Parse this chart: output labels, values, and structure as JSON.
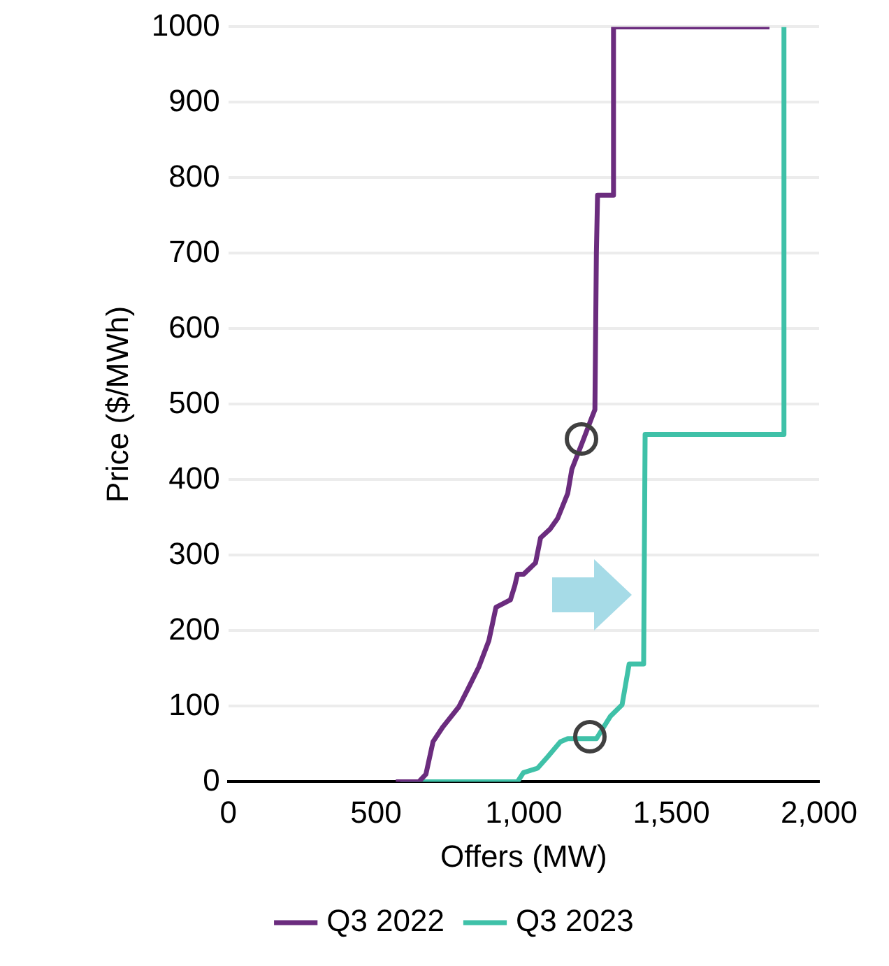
{
  "chart_data": {
    "type": "line",
    "xlabel": "Offers (MW)",
    "ylabel": "Price ($/MWh)",
    "xlim": [
      0,
      2000
    ],
    "xticks": [
      {
        "value": 0,
        "label": "0"
      },
      {
        "value": 500,
        "label": "500"
      },
      {
        "value": 1000,
        "label": "1,000"
      },
      {
        "value": 1500,
        "label": "1,500"
      },
      {
        "value": 2000,
        "label": "2,000"
      }
    ],
    "ylim": [
      0,
      1000
    ],
    "yticks": [
      0,
      100,
      200,
      300,
      400,
      500,
      600,
      700,
      800,
      900,
      1000
    ],
    "grid": "y",
    "legend": "bottom",
    "marker": "none",
    "line_style": "solid",
    "series": [
      {
        "name": "Q3 2022",
        "color": "#6b2c7e",
        "x": [
          567,
          645,
          669,
          693,
          727,
          780,
          810,
          848,
          882,
          906,
          955,
          970,
          979,
          1000,
          1040,
          1057,
          1090,
          1115,
          1149,
          1163,
          1197,
          1231,
          1241,
          1246,
          1250,
          1304,
          1304,
          1832
        ],
        "values": [
          0,
          0,
          10,
          53,
          73,
          99,
          122,
          152,
          187,
          231,
          241,
          260,
          275,
          275,
          290,
          323,
          335,
          349,
          382,
          414,
          448,
          483,
          493,
          700,
          777,
          777,
          1000,
          1000
        ]
      },
      {
        "name": "Q3 2023",
        "color": "#3fc1a8",
        "x": [
          582,
          979,
          999,
          1047,
          1081,
          1124,
          1149,
          1246,
          1294,
          1333,
          1357,
          1406,
          1411,
          1881,
          1881
        ],
        "values": [
          0,
          0,
          12,
          18,
          33,
          53,
          57,
          57,
          87,
          102,
          156,
          156,
          460,
          460,
          1000
        ]
      }
    ]
  }
}
